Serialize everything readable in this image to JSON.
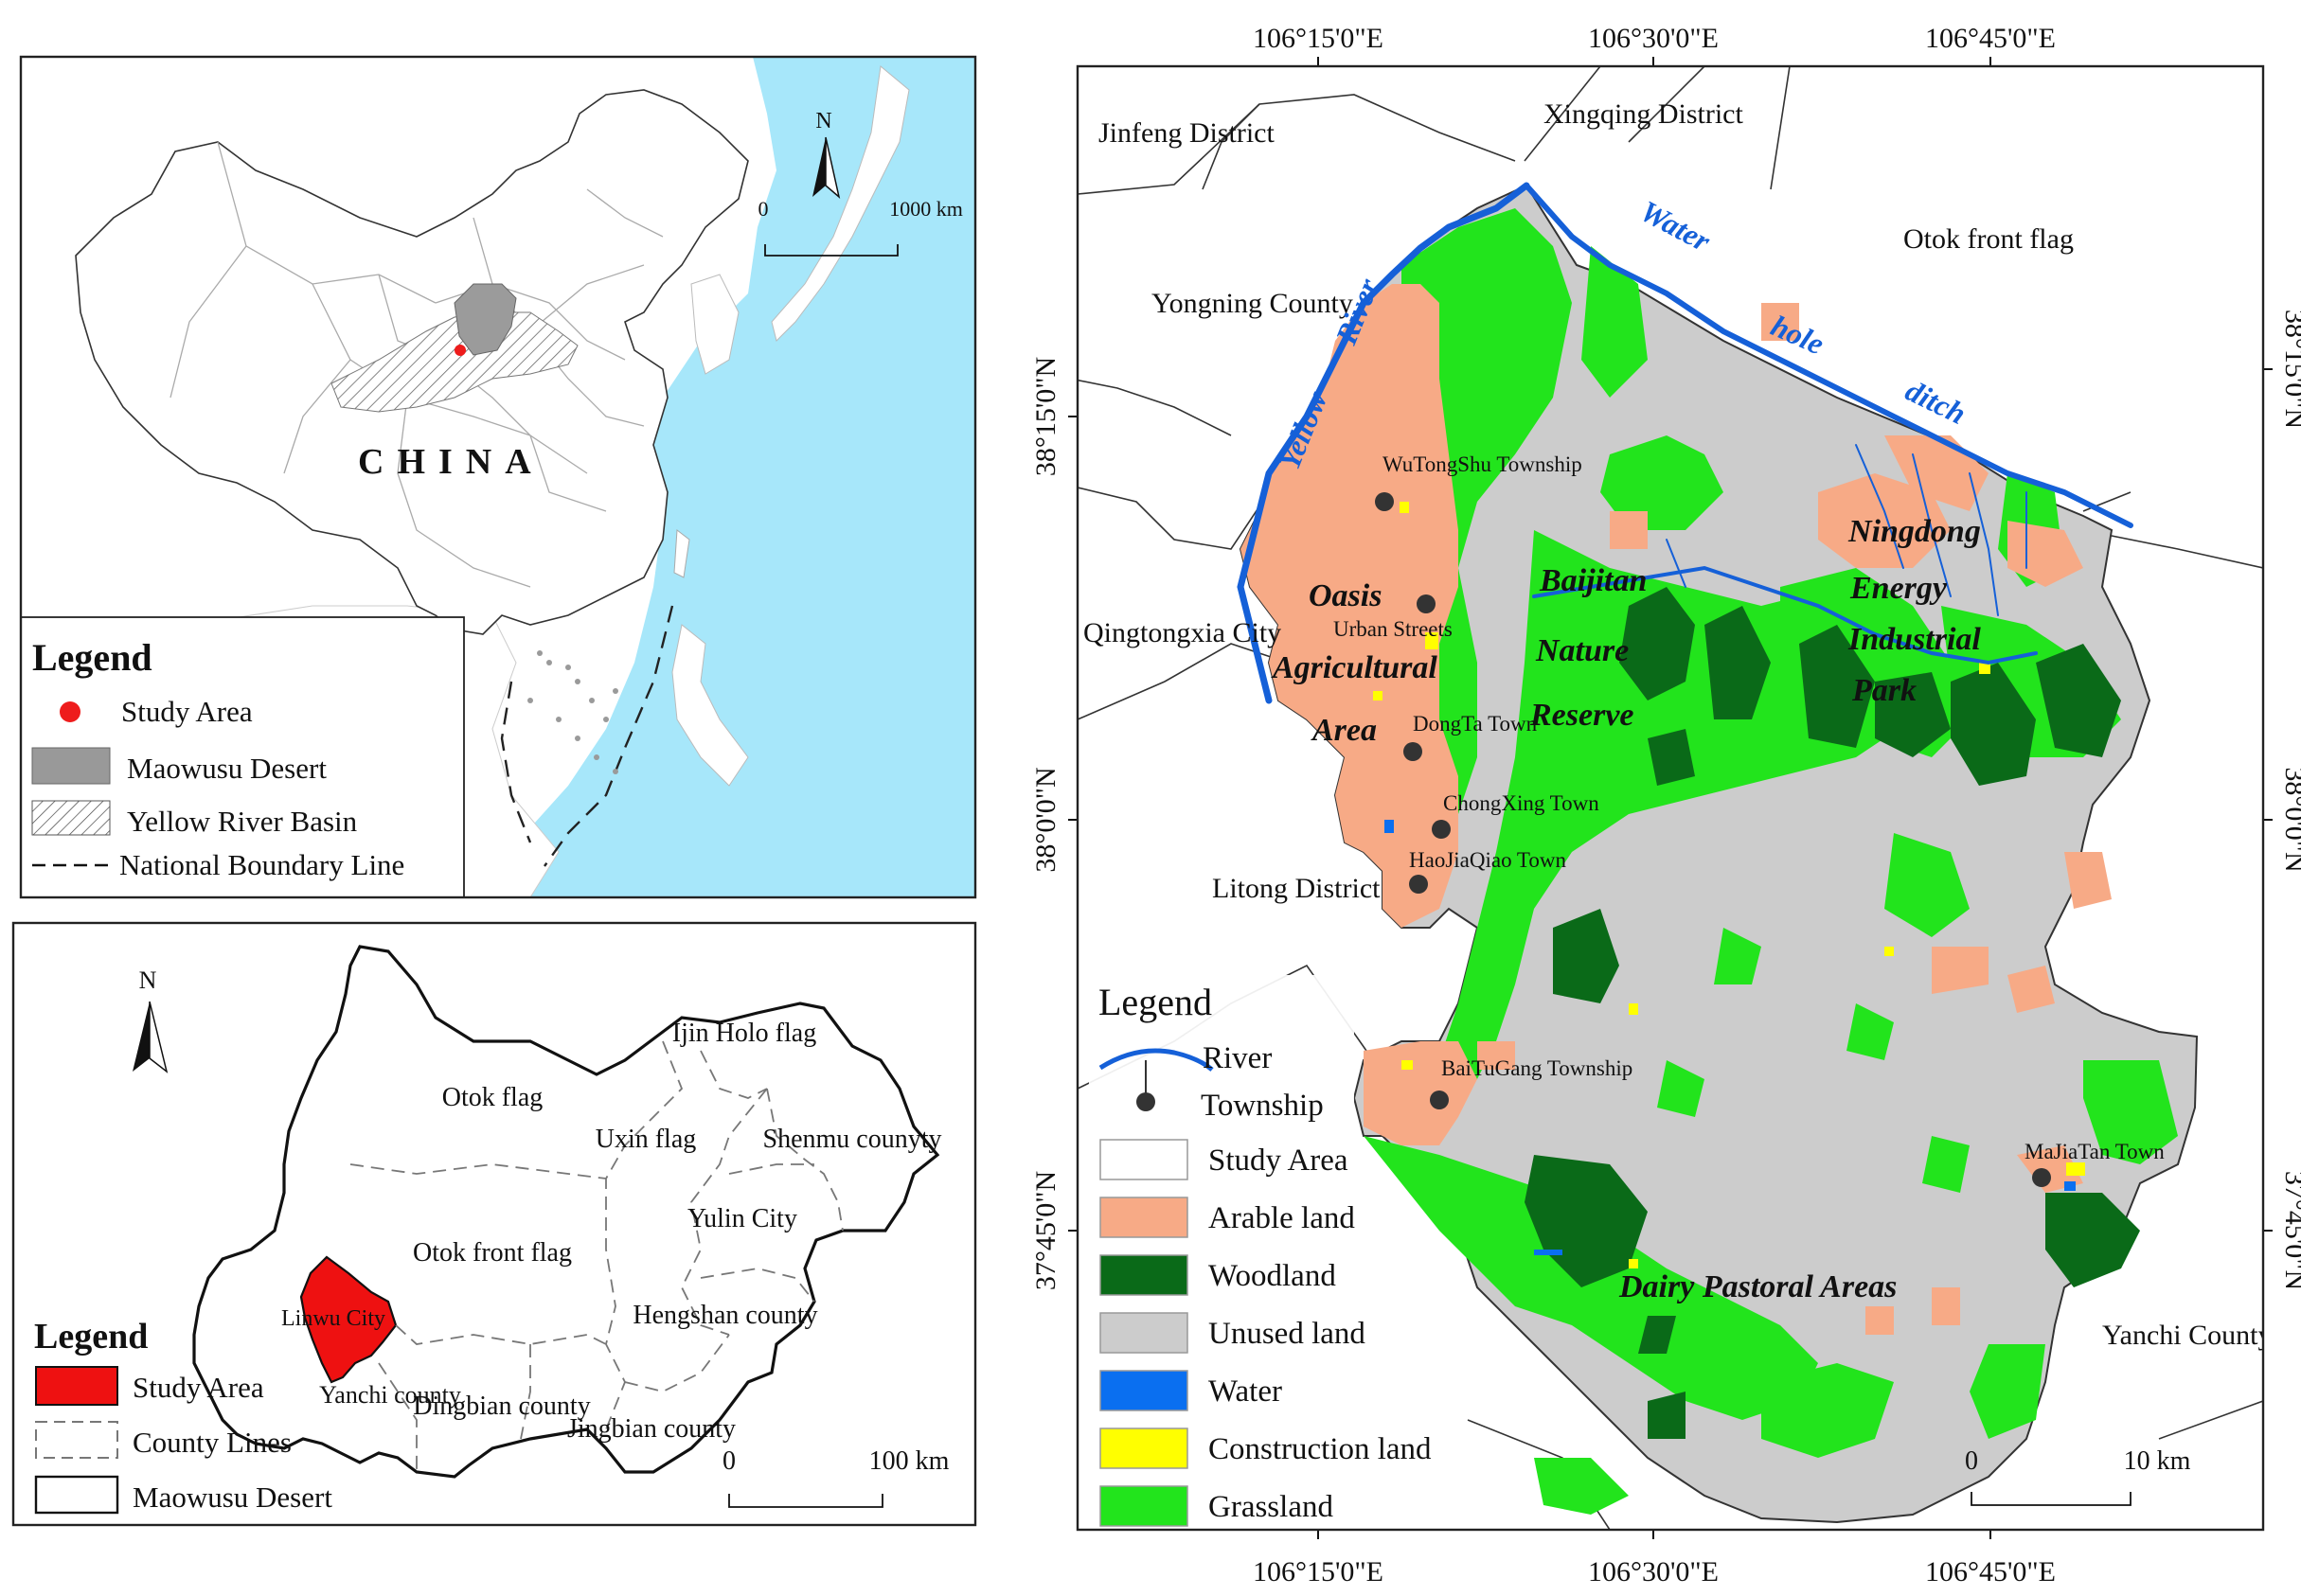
{
  "china_inset": {
    "country_label": "CHINA",
    "north_letter": "N",
    "scale_start": "0",
    "scale_end": "1000 km",
    "legend": {
      "title": "Legend",
      "items": [
        {
          "label": "Study Area",
          "symbol": "red-dot",
          "color": "#ee1c1c"
        },
        {
          "label": "Maowusu Desert",
          "symbol": "gray-box",
          "color": "#999999"
        },
        {
          "label": "Yellow River Basin",
          "symbol": "hatched-box"
        },
        {
          "label": "National Boundary Line",
          "symbol": "dashed-line"
        }
      ]
    }
  },
  "desert_inset": {
    "north_letter": "N",
    "counties": [
      {
        "label": "Ijin Holo flag"
      },
      {
        "label": "Otok flag"
      },
      {
        "label": "Uxin flag"
      },
      {
        "label": "Shenmu counyty"
      },
      {
        "label": "Yulin City"
      },
      {
        "label": "Otok front flag"
      },
      {
        "label": "Linwu City"
      },
      {
        "label": "Hengshan county"
      },
      {
        "label": "Yanchi county"
      },
      {
        "label": "Dingbian county"
      },
      {
        "label": "Jingbian county"
      }
    ],
    "scale_start": "0",
    "scale_end": "100  km",
    "legend": {
      "title": "Legend",
      "items": [
        {
          "label": "Study Area",
          "symbol": "red-box",
          "color": "#ee1111"
        },
        {
          "label": "County Lines",
          "symbol": "dashed-box"
        },
        {
          "label": "Maowusu Desert",
          "symbol": "outline-box"
        }
      ]
    }
  },
  "main_map": {
    "lon_ticks": [
      "106°15'0\"E",
      "106°30'0\"E",
      "106°45'0\"E"
    ],
    "lat_ticks": [
      "38°15'0\"N",
      "38°0'0\"N",
      "37°45'0\"N"
    ],
    "neighbors": [
      {
        "label": "Jinfeng District"
      },
      {
        "label": "Xingqing District"
      },
      {
        "label": "Otok front flag"
      },
      {
        "label": "Yongning County"
      },
      {
        "label": "Qingtongxia City"
      },
      {
        "label": "Litong District"
      },
      {
        "label": "Yanchi County"
      }
    ],
    "rivers": [
      {
        "label": "Yellow"
      },
      {
        "label": "River"
      },
      {
        "label": "Water"
      },
      {
        "label": "hole"
      },
      {
        "label": "ditch"
      }
    ],
    "regions": [
      {
        "label": "Oasis"
      },
      {
        "label": "Agricultural"
      },
      {
        "label": "Area"
      },
      {
        "label": "Baijitan"
      },
      {
        "label": "Nature"
      },
      {
        "label": "Reserve"
      },
      {
        "label": "Ningdong"
      },
      {
        "label": "Energy"
      },
      {
        "label": "Industrial"
      },
      {
        "label": "Park"
      },
      {
        "label": "Dairy Pastoral Areas"
      }
    ],
    "townships": [
      {
        "label": "WuTongShu Township"
      },
      {
        "label": "Urban Streets"
      },
      {
        "label": "DongTa Town"
      },
      {
        "label": "ChongXing Town"
      },
      {
        "label": "HaoJiaQiao Town"
      },
      {
        "label": "BaiTuGang Township"
      },
      {
        "label": "MaJiaTan Town"
      }
    ],
    "scale_start": "0",
    "scale_end": "10 km",
    "legend": {
      "title": "Legend",
      "items": [
        {
          "label": "River",
          "symbol": "blue-line",
          "color": "#1560d8"
        },
        {
          "label": "Township",
          "symbol": "black-dot",
          "color": "#333333"
        },
        {
          "label": "Study Area",
          "symbol": "outline-box",
          "color": "#ffffff"
        },
        {
          "label": "Arable land",
          "symbol": "box",
          "color": "#f7aa86"
        },
        {
          "label": "Woodland",
          "symbol": "box",
          "color": "#0a6a18"
        },
        {
          "label": "Unused land",
          "symbol": "box",
          "color": "#cccccc"
        },
        {
          "label": "Water",
          "symbol": "box",
          "color": "#0a6ff0"
        },
        {
          "label": "Construction land",
          "symbol": "box",
          "color": "#ffff00"
        },
        {
          "label": "Grassland",
          "symbol": "box",
          "color": "#22e41c"
        }
      ]
    }
  }
}
